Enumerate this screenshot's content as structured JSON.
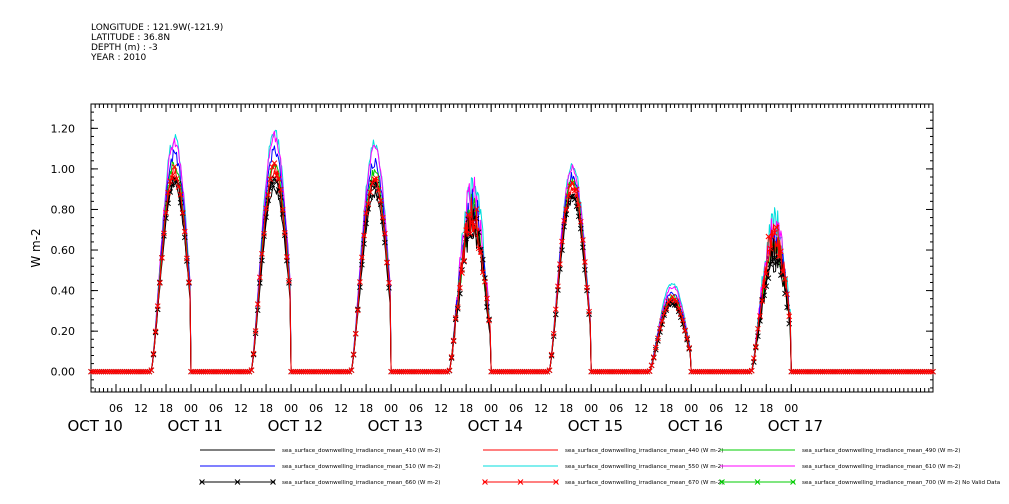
{
  "header": {
    "longitude": "LONGITUDE : 121.9W(-121.9)",
    "latitude": "LATITUDE : 36.8N",
    "depth": "DEPTH (m) : -3",
    "year": "YEAR : 2010"
  },
  "chart_data": {
    "type": "line",
    "title": "",
    "xlabel": "",
    "ylabel": "W m-2",
    "ylim": [
      -0.1,
      1.32
    ],
    "y_ticks": [
      "0.00",
      "0.20",
      "0.40",
      "0.60",
      "0.80",
      "1.00",
      "1.20"
    ],
    "x_range_hours": [
      0,
      202
    ],
    "x_hour_ticks": [
      "06",
      "12",
      "18",
      "00",
      "06",
      "12",
      "18",
      "00",
      "06",
      "12",
      "18",
      "00",
      "06",
      "12",
      "18",
      "00",
      "06",
      "12",
      "18",
      "00",
      "06",
      "12",
      "18",
      "00",
      "06",
      "12",
      "18",
      "00"
    ],
    "x_day_labels": [
      "OCT 10",
      "OCT 11",
      "OCT 12",
      "OCT 13",
      "OCT 14",
      "OCT 15",
      "OCT 16",
      "OCT 17"
    ],
    "daily_peak_local_hour": [
      20,
      20,
      20,
      19.5,
      19.5,
      19.5,
      20
    ],
    "daily_peaks_by_series": {
      "sea_surface_downwelling_irradiance_mean_410 (W m-2)": [
        0.95,
        0.93,
        0.9,
        0.8,
        0.88,
        0.34,
        0.63
      ],
      "sea_surface_downwelling_irradiance_mean_440 (W m-2)": [
        1.0,
        1.0,
        0.97,
        0.85,
        0.93,
        0.36,
        0.69
      ],
      "sea_surface_downwelling_irradiance_mean_490 (W m-2)": [
        1.05,
        1.06,
        1.01,
        0.88,
        0.97,
        0.38,
        0.71
      ],
      "sea_surface_downwelling_irradiance_mean_510 (W m-2)": [
        1.1,
        1.12,
        1.06,
        0.92,
        0.99,
        0.4,
        0.74
      ],
      "sea_surface_downwelling_irradiance_mean_550 (W m-2)": [
        1.18,
        1.21,
        1.15,
        1.01,
        1.05,
        0.45,
        0.83
      ],
      "sea_surface_downwelling_irradiance_mean_610 (W m-2)": [
        1.16,
        1.19,
        1.13,
        0.99,
        1.03,
        0.43,
        0.81
      ],
      "sea_surface_downwelling_irradiance_mean_660 (W m-2)": [
        0.98,
        0.98,
        0.95,
        0.84,
        0.9,
        0.35,
        0.66
      ],
      "sea_surface_downwelling_irradiance_mean_670 (W m-2)": [
        1.01,
        1.03,
        0.98,
        0.87,
        0.95,
        0.37,
        0.76
      ]
    },
    "series": [
      {
        "name": "sea_surface_downwelling_irradiance_mean_410 (W m-2)",
        "color": "#000000",
        "marker": "none"
      },
      {
        "name": "sea_surface_downwelling_irradiance_mean_440 (W m-2)",
        "color": "#ff0000",
        "marker": "none"
      },
      {
        "name": "sea_surface_downwelling_irradiance_mean_490 (W m-2)",
        "color": "#00cc00",
        "marker": "none"
      },
      {
        "name": "sea_surface_downwelling_irradiance_mean_510 (W m-2)",
        "color": "#0000ff",
        "marker": "none"
      },
      {
        "name": "sea_surface_downwelling_irradiance_mean_550 (W m-2)",
        "color": "#00dddd",
        "marker": "none"
      },
      {
        "name": "sea_surface_downwelling_irradiance_mean_610 (W m-2)",
        "color": "#ff00ff",
        "marker": "none"
      },
      {
        "name": "sea_surface_downwelling_irradiance_mean_660 (W m-2)",
        "color": "#000000",
        "marker": "x"
      },
      {
        "name": "sea_surface_downwelling_irradiance_mean_670 (W m-2)",
        "color": "#ff0000",
        "marker": "x"
      },
      {
        "name": "sea_surface_downwelling_irradiance_mean_700 (W m-2) No Valid Data",
        "color": "#00cc00",
        "marker": "x",
        "no_data": true
      }
    ],
    "draw_order": [
      4,
      5,
      3,
      2,
      1,
      0,
      6,
      7
    ],
    "grid": false,
    "legend_position": "bottom"
  }
}
